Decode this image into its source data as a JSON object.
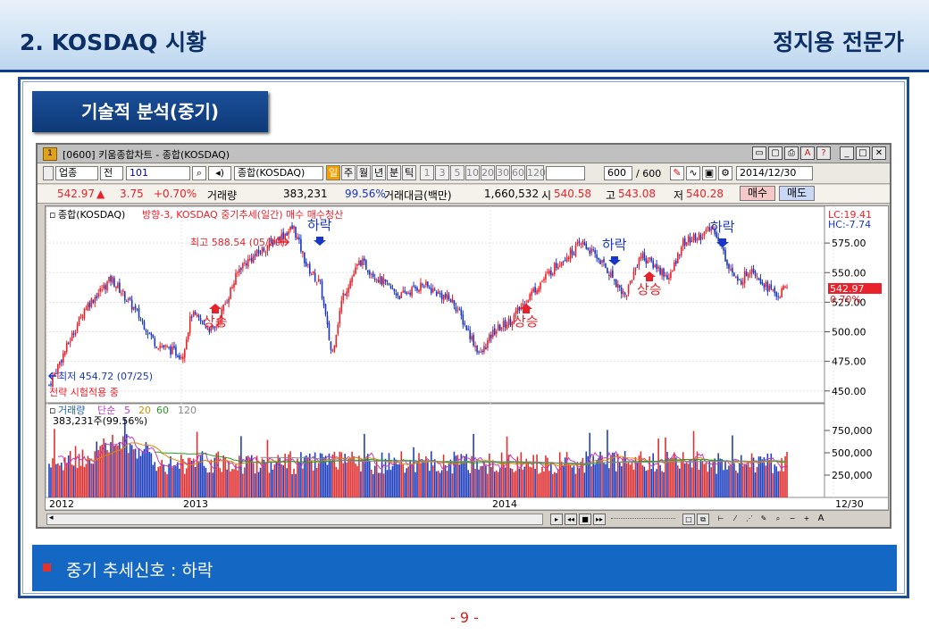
{
  "header": {
    "title": "2. KOSDAQ 시황",
    "right_label": "정지용 전문가"
  },
  "section": {
    "tag": "기술적 분석(중기)"
  },
  "window": {
    "title": "[0600] 키움종합차트 - 종합(KOSDAQ)",
    "toolbar": {
      "market": "업종",
      "prev": "전",
      "code": "101",
      "name": "종합(KOSDAQ)",
      "periods": [
        "일",
        "주",
        "월",
        "년",
        "분",
        "틱"
      ],
      "minutes": [
        "1",
        "3",
        "5",
        "10",
        "20",
        "30",
        "60",
        "120"
      ],
      "count": "600",
      "count_total": "/ 600",
      "date": "2014/12/30"
    },
    "quote": {
      "price": "542.97",
      "change": "3.75",
      "pct": "+0.70%",
      "vol_label": "거래량",
      "vol": "383,231",
      "vol_ratio": "99.56%",
      "amount_label": "거래대금(백만)",
      "amount": "1,660,532",
      "open_label": "시",
      "open": "540.58",
      "high_label": "고",
      "high": "543.08",
      "low_label": "저",
      "low": "540.28",
      "buy": "매수",
      "sell": "매도"
    },
    "chart": {
      "legend_name": "종합(KOSDAQ)",
      "legend_strategy": "방향-3, KOSDAQ 중기추세(일간) 매수  매수청산",
      "lc": "LC:19.41",
      "hc": "HC:-7.74",
      "last_price": "542.97",
      "last_pct": "0.70%",
      "max_label": "최고 588.54 (05/29)",
      "min_label": "최저 454.72 (07/25)",
      "strategy_note": "전략 시험적용 중",
      "signals": {
        "fall": "하락",
        "rise": "상승"
      },
      "price_ticks": [
        "575.00",
        "550.00",
        "525.00",
        "500.00",
        "475.00",
        "450.00"
      ],
      "vol_legend": [
        "거래량",
        "단순",
        "5",
        "20",
        "60",
        "120"
      ],
      "vol_value": "383,231주(99.56%)",
      "vol_ticks": [
        "750,000",
        "500,000",
        "250,000"
      ],
      "x_ticks": [
        "2012",
        "2013",
        "2014",
        "12/30"
      ]
    }
  },
  "signal_bar": {
    "text": "중기 추세신호  :  하락"
  },
  "page_number": "- 9 -",
  "colors": {
    "up": "#e8212a",
    "down": "#1736c7",
    "navy": "#0c2f66"
  }
}
